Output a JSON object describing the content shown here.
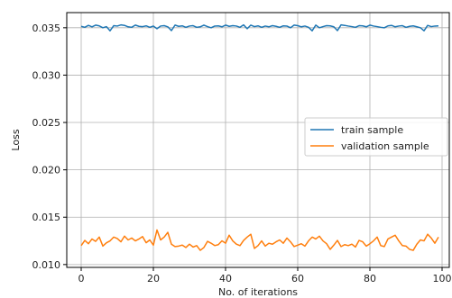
{
  "chart_data": {
    "type": "line",
    "title": "",
    "xlabel": "No. of iterations",
    "ylabel": "Loss",
    "xlim": [
      -4,
      102
    ],
    "ylim": [
      0.0097,
      0.0366
    ],
    "xticks": [
      0,
      20,
      40,
      60,
      80,
      100
    ],
    "xtick_labels": [
      "0",
      "20",
      "40",
      "60",
      "80",
      "100"
    ],
    "yticks": [
      0.01,
      0.015,
      0.02,
      0.025,
      0.03,
      0.035
    ],
    "ytick_labels": [
      "0.010",
      "0.015",
      "0.020",
      "0.025",
      "0.030",
      "0.035"
    ],
    "grid": true,
    "legend_position": "center-right",
    "series": [
      {
        "name": "train sample",
        "color": "#1f77b4",
        "values": [
          0.03515,
          0.03505,
          0.03525,
          0.0351,
          0.03528,
          0.0352,
          0.035,
          0.03512,
          0.03468,
          0.03522,
          0.03518,
          0.0353,
          0.03525,
          0.0351,
          0.03505,
          0.03528,
          0.03515,
          0.03512,
          0.0352,
          0.03505,
          0.03518,
          0.0349,
          0.03518,
          0.03522,
          0.0351,
          0.0347,
          0.03528,
          0.03515,
          0.0352,
          0.03505,
          0.03518,
          0.03522,
          0.03505,
          0.0351,
          0.03528,
          0.03512,
          0.035,
          0.03518,
          0.0352,
          0.0351,
          0.03528,
          0.03515,
          0.03522,
          0.03518,
          0.03505,
          0.0353,
          0.0349,
          0.03528,
          0.03512,
          0.0352,
          0.03505,
          0.03518,
          0.0351,
          0.03522,
          0.03515,
          0.03505,
          0.0352,
          0.03518,
          0.035,
          0.03528,
          0.03522,
          0.0351,
          0.03518,
          0.03505,
          0.03468,
          0.03528,
          0.035,
          0.03512,
          0.03522,
          0.0352,
          0.0351,
          0.0347,
          0.0353,
          0.03525,
          0.03518,
          0.03512,
          0.03505,
          0.03522,
          0.0352,
          0.0351,
          0.03528,
          0.03518,
          0.03512,
          0.03505,
          0.035,
          0.0352,
          0.03525,
          0.0351,
          0.03518,
          0.03522,
          0.03505,
          0.03515,
          0.0352,
          0.0351,
          0.035,
          0.03468,
          0.03525,
          0.03512,
          0.03518,
          0.0352
        ]
      },
      {
        "name": "validation sample",
        "color": "#ff7f0e",
        "values": [
          0.012,
          0.01255,
          0.0122,
          0.0127,
          0.01245,
          0.0129,
          0.01195,
          0.0123,
          0.0125,
          0.0129,
          0.01275,
          0.0124,
          0.013,
          0.0126,
          0.0128,
          0.0125,
          0.0127,
          0.01295,
          0.0123,
          0.0126,
          0.01205,
          0.01365,
          0.0126,
          0.0129,
          0.0134,
          0.01215,
          0.0119,
          0.01195,
          0.01205,
          0.0118,
          0.01215,
          0.01185,
          0.012,
          0.0115,
          0.0118,
          0.01245,
          0.01225,
          0.012,
          0.0121,
          0.0125,
          0.01225,
          0.0131,
          0.0125,
          0.01215,
          0.012,
          0.01255,
          0.0129,
          0.0132,
          0.0117,
          0.012,
          0.0125,
          0.01195,
          0.01225,
          0.01215,
          0.0124,
          0.0126,
          0.01225,
          0.0128,
          0.0124,
          0.0119,
          0.01205,
          0.0122,
          0.01195,
          0.0125,
          0.0129,
          0.0127,
          0.013,
          0.0125,
          0.0122,
          0.0116,
          0.01205,
          0.01255,
          0.0119,
          0.0121,
          0.012,
          0.01215,
          0.01185,
          0.01255,
          0.0124,
          0.01195,
          0.0122,
          0.0125,
          0.0129,
          0.012,
          0.0119,
          0.0127,
          0.0129,
          0.0131,
          0.0125,
          0.012,
          0.01195,
          0.0116,
          0.0115,
          0.01215,
          0.0126,
          0.0125,
          0.0132,
          0.0128,
          0.01225,
          0.0129
        ]
      }
    ]
  }
}
